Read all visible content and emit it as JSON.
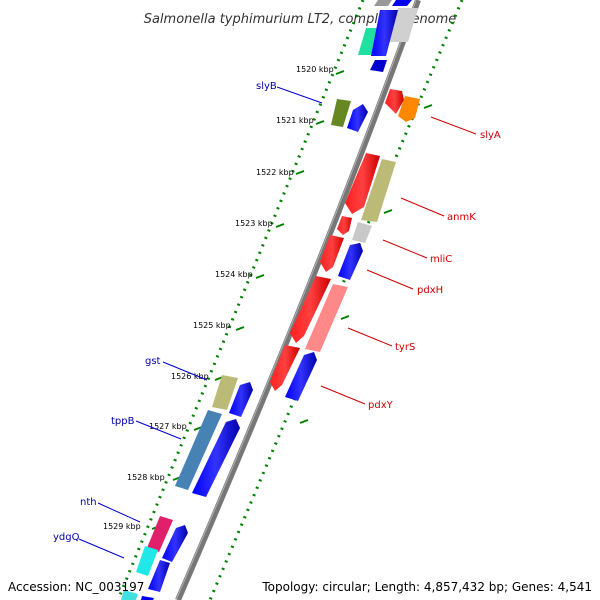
{
  "title": "Salmonella typhimurium LT2, complete genome",
  "footer": {
    "accession": "Accession: NC_003197",
    "topology": "Topology: circular; Length: 4,857,432 bp; Genes: 4,541"
  },
  "colors": {
    "backbone": "#808080",
    "dots": "#008000",
    "reverse_label": "#0000aa",
    "forward_label": "#cc0000"
  },
  "tick_labels": [
    "1520 kbp",
    "1521 kbp",
    "1522 kbp",
    "1523 kbp",
    "1524 kbp",
    "1525 kbp",
    "1526 kbp",
    "1527 kbp",
    "1528 kbp",
    "1529 kbp"
  ],
  "genes_left": [
    {
      "name": "slyB",
      "color": "#0000aa"
    },
    {
      "name": "gst",
      "color": "#0000aa"
    },
    {
      "name": "tppB",
      "color": "#0000aa"
    },
    {
      "name": "nth",
      "color": "#0000aa"
    },
    {
      "name": "ydgQ",
      "color": "#0000aa"
    }
  ],
  "genes_right": [
    {
      "name": "slyA",
      "color": "#cc0000"
    },
    {
      "name": "anmK",
      "color": "#cc0000"
    },
    {
      "name": "mliC",
      "color": "#cc0000"
    },
    {
      "name": "pdxH",
      "color": "#cc0000"
    },
    {
      "name": "tyrS",
      "color": "#cc0000"
    },
    {
      "name": "pdxY",
      "color": "#cc0000"
    }
  ]
}
